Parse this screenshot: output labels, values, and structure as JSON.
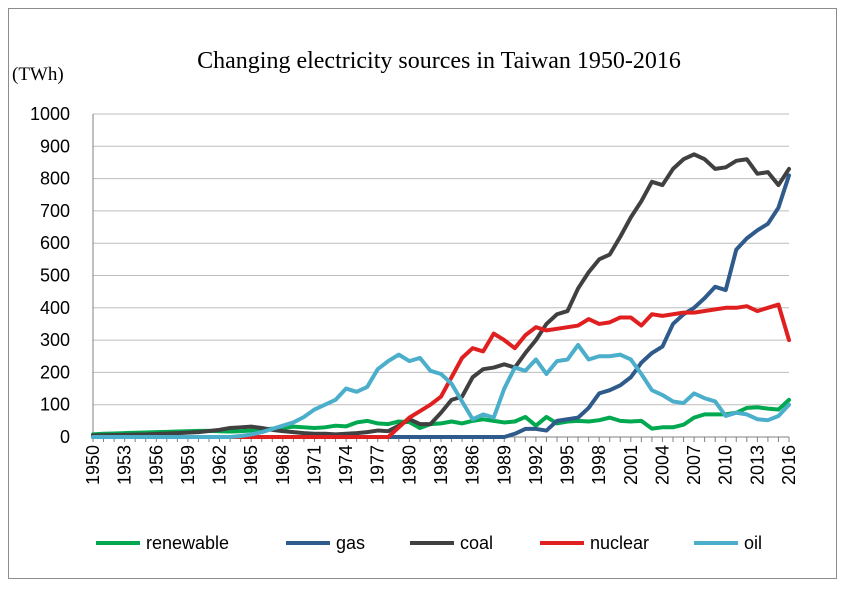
{
  "chart_data": {
    "type": "line",
    "title": "Changing electricity sources in Taiwan 1950-2016",
    "ylabel": "(TWh)",
    "xlabel": "",
    "ylim": [
      0,
      1000
    ],
    "xlim": [
      1950,
      2016
    ],
    "y_ticks": [
      "0",
      "100",
      "200",
      "300",
      "400",
      "500",
      "600",
      "700",
      "800",
      "900",
      "1000"
    ],
    "x_ticks": [
      "1950",
      "1953",
      "1956",
      "1959",
      "1962",
      "1965",
      "1968",
      "1971",
      "1974",
      "1977",
      "1980",
      "1983",
      "1986",
      "1989",
      "1992",
      "1995",
      "1998",
      "2001",
      "2004",
      "2007",
      "2010",
      "2013",
      "2016"
    ],
    "grid": true,
    "legend_position": "bottom",
    "series": [
      {
        "name": "renewable",
        "color": "#00a94f",
        "points": [
          [
            1950,
            8
          ],
          [
            1951,
            10
          ],
          [
            1952,
            11
          ],
          [
            1953,
            12
          ],
          [
            1954,
            13
          ],
          [
            1955,
            14
          ],
          [
            1956,
            15
          ],
          [
            1957,
            16
          ],
          [
            1958,
            17
          ],
          [
            1959,
            18
          ],
          [
            1960,
            19
          ],
          [
            1961,
            19
          ],
          [
            1962,
            18
          ],
          [
            1963,
            17
          ],
          [
            1964,
            18
          ],
          [
            1965,
            20
          ],
          [
            1966,
            22
          ],
          [
            1967,
            26
          ],
          [
            1968,
            28
          ],
          [
            1969,
            32
          ],
          [
            1970,
            30
          ],
          [
            1971,
            28
          ],
          [
            1972,
            30
          ],
          [
            1973,
            35
          ],
          [
            1974,
            33
          ],
          [
            1975,
            45
          ],
          [
            1976,
            50
          ],
          [
            1977,
            42
          ],
          [
            1978,
            40
          ],
          [
            1979,
            48
          ],
          [
            1980,
            46
          ],
          [
            1981,
            28
          ],
          [
            1982,
            40
          ],
          [
            1983,
            42
          ],
          [
            1984,
            48
          ],
          [
            1985,
            42
          ],
          [
            1986,
            50
          ],
          [
            1987,
            55
          ],
          [
            1988,
            50
          ],
          [
            1989,
            45
          ],
          [
            1990,
            48
          ],
          [
            1991,
            62
          ],
          [
            1992,
            35
          ],
          [
            1993,
            62
          ],
          [
            1994,
            42
          ],
          [
            1995,
            48
          ],
          [
            1996,
            50
          ],
          [
            1997,
            48
          ],
          [
            1998,
            52
          ],
          [
            1999,
            60
          ],
          [
            2000,
            50
          ],
          [
            2001,
            48
          ],
          [
            2002,
            50
          ],
          [
            2003,
            26
          ],
          [
            2004,
            30
          ],
          [
            2005,
            30
          ],
          [
            2006,
            38
          ],
          [
            2007,
            60
          ],
          [
            2008,
            70
          ],
          [
            2009,
            70
          ],
          [
            2010,
            70
          ],
          [
            2011,
            75
          ],
          [
            2012,
            90
          ],
          [
            2013,
            92
          ],
          [
            2014,
            88
          ],
          [
            2015,
            85
          ],
          [
            2016,
            115
          ]
        ]
      },
      {
        "name": "gas",
        "color": "#2f5a8c",
        "points": [
          [
            1950,
            0
          ],
          [
            1989,
            0
          ],
          [
            1990,
            10
          ],
          [
            1991,
            25
          ],
          [
            1992,
            25
          ],
          [
            1993,
            20
          ],
          [
            1994,
            50
          ],
          [
            1995,
            55
          ],
          [
            1996,
            60
          ],
          [
            1997,
            90
          ],
          [
            1998,
            135
          ],
          [
            1999,
            145
          ],
          [
            2000,
            160
          ],
          [
            2001,
            185
          ],
          [
            2002,
            230
          ],
          [
            2003,
            260
          ],
          [
            2004,
            280
          ],
          [
            2005,
            350
          ],
          [
            2006,
            380
          ],
          [
            2007,
            400
          ],
          [
            2008,
            430
          ],
          [
            2009,
            465
          ],
          [
            2010,
            455
          ],
          [
            2011,
            580
          ],
          [
            2012,
            615
          ],
          [
            2013,
            640
          ],
          [
            2014,
            660
          ],
          [
            2015,
            710
          ],
          [
            2016,
            810
          ]
        ]
      },
      {
        "name": "coal",
        "color": "#404040",
        "points": [
          [
            1950,
            5
          ],
          [
            1955,
            8
          ],
          [
            1958,
            12
          ],
          [
            1960,
            15
          ],
          [
            1962,
            22
          ],
          [
            1963,
            28
          ],
          [
            1964,
            30
          ],
          [
            1965,
            32
          ],
          [
            1966,
            28
          ],
          [
            1967,
            22
          ],
          [
            1968,
            18
          ],
          [
            1969,
            15
          ],
          [
            1970,
            12
          ],
          [
            1971,
            10
          ],
          [
            1972,
            10
          ],
          [
            1973,
            8
          ],
          [
            1974,
            10
          ],
          [
            1975,
            12
          ],
          [
            1976,
            15
          ],
          [
            1977,
            20
          ],
          [
            1978,
            18
          ],
          [
            1979,
            35
          ],
          [
            1980,
            55
          ],
          [
            1981,
            40
          ],
          [
            1982,
            40
          ],
          [
            1983,
            75
          ],
          [
            1984,
            115
          ],
          [
            1985,
            125
          ],
          [
            1986,
            185
          ],
          [
            1987,
            210
          ],
          [
            1988,
            215
          ],
          [
            1989,
            225
          ],
          [
            1990,
            215
          ],
          [
            1991,
            260
          ],
          [
            1992,
            300
          ],
          [
            1993,
            350
          ],
          [
            1994,
            380
          ],
          [
            1995,
            390
          ],
          [
            1996,
            460
          ],
          [
            1997,
            510
          ],
          [
            1998,
            550
          ],
          [
            1999,
            565
          ],
          [
            2000,
            620
          ],
          [
            2001,
            680
          ],
          [
            2002,
            730
          ],
          [
            2003,
            790
          ],
          [
            2004,
            780
          ],
          [
            2005,
            830
          ],
          [
            2006,
            860
          ],
          [
            2007,
            875
          ],
          [
            2008,
            860
          ],
          [
            2009,
            830
          ],
          [
            2010,
            835
          ],
          [
            2011,
            855
          ],
          [
            2012,
            860
          ],
          [
            2013,
            815
          ],
          [
            2014,
            820
          ],
          [
            2015,
            780
          ],
          [
            2016,
            830
          ]
        ]
      },
      {
        "name": "nuclear",
        "color": "#e02020",
        "points": [
          [
            1950,
            0
          ],
          [
            1978,
            0
          ],
          [
            1979,
            30
          ],
          [
            1980,
            60
          ],
          [
            1981,
            80
          ],
          [
            1982,
            100
          ],
          [
            1983,
            125
          ],
          [
            1984,
            185
          ],
          [
            1985,
            245
          ],
          [
            1986,
            275
          ],
          [
            1987,
            265
          ],
          [
            1988,
            320
          ],
          [
            1989,
            300
          ],
          [
            1990,
            275
          ],
          [
            1991,
            315
          ],
          [
            1992,
            340
          ],
          [
            1993,
            330
          ],
          [
            1994,
            335
          ],
          [
            1995,
            340
          ],
          [
            1996,
            345
          ],
          [
            1997,
            365
          ],
          [
            1998,
            350
          ],
          [
            1999,
            355
          ],
          [
            2000,
            370
          ],
          [
            2001,
            370
          ],
          [
            2002,
            345
          ],
          [
            2003,
            380
          ],
          [
            2004,
            375
          ],
          [
            2005,
            380
          ],
          [
            2006,
            385
          ],
          [
            2007,
            385
          ],
          [
            2008,
            390
          ],
          [
            2009,
            395
          ],
          [
            2010,
            400
          ],
          [
            2011,
            400
          ],
          [
            2012,
            405
          ],
          [
            2013,
            390
          ],
          [
            2014,
            400
          ],
          [
            2015,
            410
          ],
          [
            2016,
            300
          ]
        ]
      },
      {
        "name": "oil",
        "color": "#4baecb",
        "points": [
          [
            1950,
            0
          ],
          [
            1963,
            0
          ],
          [
            1964,
            3
          ],
          [
            1965,
            8
          ],
          [
            1966,
            15
          ],
          [
            1967,
            25
          ],
          [
            1968,
            35
          ],
          [
            1969,
            45
          ],
          [
            1970,
            62
          ],
          [
            1971,
            85
          ],
          [
            1972,
            100
          ],
          [
            1973,
            115
          ],
          [
            1974,
            150
          ],
          [
            1975,
            140
          ],
          [
            1976,
            155
          ],
          [
            1977,
            210
          ],
          [
            1978,
            235
          ],
          [
            1979,
            255
          ],
          [
            1980,
            235
          ],
          [
            1981,
            245
          ],
          [
            1982,
            205
          ],
          [
            1983,
            195
          ],
          [
            1984,
            165
          ],
          [
            1985,
            110
          ],
          [
            1986,
            55
          ],
          [
            1987,
            70
          ],
          [
            1988,
            60
          ],
          [
            1989,
            150
          ],
          [
            1990,
            215
          ],
          [
            1991,
            205
          ],
          [
            1992,
            240
          ],
          [
            1993,
            195
          ],
          [
            1994,
            235
          ],
          [
            1995,
            240
          ],
          [
            1996,
            285
          ],
          [
            1997,
            240
          ],
          [
            1998,
            250
          ],
          [
            1999,
            250
          ],
          [
            2000,
            255
          ],
          [
            2001,
            240
          ],
          [
            2002,
            195
          ],
          [
            2003,
            145
          ],
          [
            2004,
            130
          ],
          [
            2005,
            110
          ],
          [
            2006,
            105
          ],
          [
            2007,
            135
          ],
          [
            2008,
            120
          ],
          [
            2009,
            110
          ],
          [
            2010,
            65
          ],
          [
            2011,
            75
          ],
          [
            2012,
            70
          ],
          [
            2013,
            55
          ],
          [
            2014,
            52
          ],
          [
            2015,
            65
          ],
          [
            2016,
            100
          ]
        ]
      }
    ]
  }
}
